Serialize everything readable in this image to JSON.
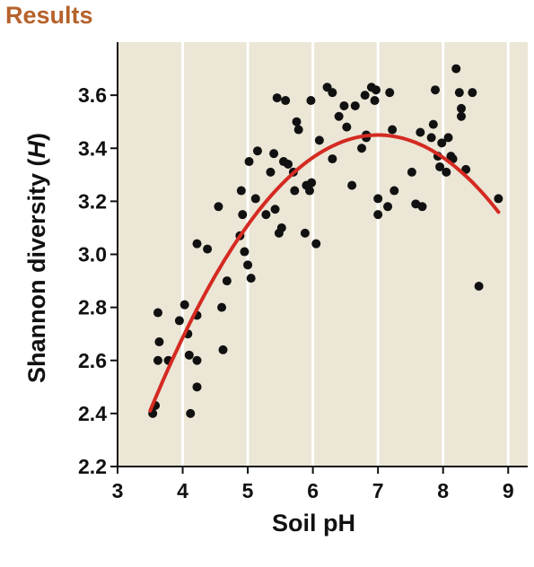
{
  "figure_title": "Results",
  "colors": {
    "title": "#b5622b",
    "plot_background": "#ebe6d6",
    "grid": "#ffffff",
    "points": "#111111",
    "fit_curve": "#d42a22",
    "axis": "#111111"
  },
  "chart_data": {
    "type": "scatter",
    "title": "Results",
    "xlabel": "Soil pH",
    "ylabel_main": "Shannon diversity (",
    "ylabel_italic": "H",
    "ylabel_close": ")",
    "xlim": [
      3,
      9.3
    ],
    "ylim": [
      2.2,
      3.8
    ],
    "xticks": [
      "3",
      "4",
      "5",
      "6",
      "7",
      "8",
      "9"
    ],
    "yticks": [
      "2.2",
      "2.4",
      "2.6",
      "2.8",
      "3.0",
      "3.2",
      "3.4",
      "3.6"
    ],
    "grid": "vertical",
    "fit_curve": {
      "type": "quadratic",
      "x_range": [
        3.5,
        8.85
      ],
      "peak_x": 7.0,
      "peak_y": 3.45,
      "y_at_start": 2.41
    },
    "points": [
      [
        3.54,
        2.4
      ],
      [
        3.58,
        2.43
      ],
      [
        3.62,
        2.6
      ],
      [
        3.62,
        2.78
      ],
      [
        3.64,
        2.67
      ],
      [
        3.78,
        2.6
      ],
      [
        3.95,
        2.75
      ],
      [
        4.03,
        2.81
      ],
      [
        4.08,
        2.7
      ],
      [
        4.1,
        2.62
      ],
      [
        4.12,
        2.4
      ],
      [
        4.22,
        2.77
      ],
      [
        4.22,
        2.6
      ],
      [
        4.22,
        2.5
      ],
      [
        4.22,
        3.04
      ],
      [
        4.38,
        3.02
      ],
      [
        4.55,
        3.18
      ],
      [
        4.6,
        2.8
      ],
      [
        4.62,
        2.64
      ],
      [
        4.68,
        2.9
      ],
      [
        4.88,
        3.07
      ],
      [
        4.9,
        3.24
      ],
      [
        4.92,
        3.15
      ],
      [
        4.95,
        3.01
      ],
      [
        5.0,
        2.96
      ],
      [
        5.02,
        3.35
      ],
      [
        5.05,
        2.91
      ],
      [
        5.12,
        3.21
      ],
      [
        5.15,
        3.39
      ],
      [
        5.28,
        3.15
      ],
      [
        5.35,
        3.31
      ],
      [
        5.4,
        3.38
      ],
      [
        5.42,
        3.17
      ],
      [
        5.45,
        3.59
      ],
      [
        5.48,
        3.08
      ],
      [
        5.52,
        3.1
      ],
      [
        5.55,
        3.35
      ],
      [
        5.58,
        3.58
      ],
      [
        5.62,
        3.34
      ],
      [
        5.7,
        3.31
      ],
      [
        5.72,
        3.24
      ],
      [
        5.75,
        3.5
      ],
      [
        5.78,
        3.47
      ],
      [
        5.88,
        3.08
      ],
      [
        5.9,
        3.26
      ],
      [
        5.95,
        3.24
      ],
      [
        5.98,
        3.27
      ],
      [
        5.97,
        3.58
      ],
      [
        6.05,
        3.04
      ],
      [
        6.1,
        3.43
      ],
      [
        6.22,
        3.63
      ],
      [
        6.3,
        3.61
      ],
      [
        6.3,
        3.36
      ],
      [
        6.4,
        3.52
      ],
      [
        6.48,
        3.56
      ],
      [
        6.52,
        3.48
      ],
      [
        6.6,
        3.26
      ],
      [
        6.65,
        3.56
      ],
      [
        6.75,
        3.4
      ],
      [
        6.8,
        3.6
      ],
      [
        6.82,
        3.45
      ],
      [
        6.82,
        3.44
      ],
      [
        6.9,
        3.63
      ],
      [
        6.95,
        3.58
      ],
      [
        6.97,
        3.62
      ],
      [
        7.0,
        3.15
      ],
      [
        7.0,
        3.21
      ],
      [
        7.15,
        3.18
      ],
      [
        7.18,
        3.61
      ],
      [
        7.22,
        3.47
      ],
      [
        7.25,
        3.24
      ],
      [
        7.52,
        3.31
      ],
      [
        7.58,
        3.19
      ],
      [
        7.65,
        3.46
      ],
      [
        7.68,
        3.18
      ],
      [
        7.82,
        3.44
      ],
      [
        7.85,
        3.49
      ],
      [
        7.88,
        3.62
      ],
      [
        7.92,
        3.37
      ],
      [
        7.95,
        3.33
      ],
      [
        7.98,
        3.42
      ],
      [
        8.05,
        3.31
      ],
      [
        8.08,
        3.44
      ],
      [
        8.12,
        3.37
      ],
      [
        8.15,
        3.36
      ],
      [
        8.2,
        3.7
      ],
      [
        8.25,
        3.61
      ],
      [
        8.28,
        3.55
      ],
      [
        8.28,
        3.52
      ],
      [
        8.35,
        3.32
      ],
      [
        8.45,
        3.61
      ],
      [
        8.55,
        2.88
      ],
      [
        8.85,
        3.21
      ]
    ]
  }
}
